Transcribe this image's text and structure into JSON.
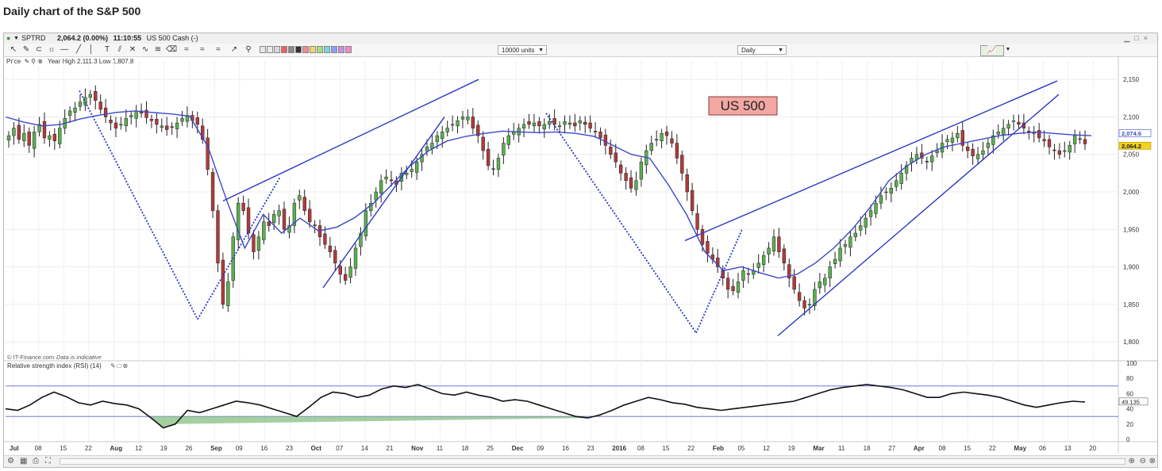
{
  "page": {
    "title": "Daily chart of the S&P 500"
  },
  "window": {
    "symbol_info": "SPTRD",
    "quote": "2,064.2 (0.00%)",
    "time": "11:10:55",
    "instrument": "US 500 Cash (-)"
  },
  "toolbar": {
    "units_select": "10000 units",
    "interval_select": "Daily"
  },
  "price_panel": {
    "label": "Price",
    "year_range": "Year High 2,111.3 Low 1,807.8",
    "chart_label": "US 500",
    "source": "© IT-Finance.com",
    "source_note": "Data is indicative"
  },
  "rsi_panel": {
    "label": "Relative strength index (RSI) (14)",
    "current": "49.135"
  },
  "chart_data": {
    "type": "candlestick",
    "price_axis": {
      "ticks": [
        1800,
        1850,
        1900,
        1950,
        2000,
        2050,
        2100,
        2150
      ],
      "tick_labels": [
        "1,800",
        "1,850",
        "1,900",
        "1,950",
        "2,000",
        "2,050",
        "2,100",
        "2,150"
      ],
      "range": [
        1780,
        2165
      ],
      "markers": [
        {
          "label": "2,074.6",
          "value": 2074.6,
          "color": "#3b4bc8"
        },
        {
          "label": "2,064.2",
          "value": 2064.2,
          "color": "#f1d21c"
        }
      ]
    },
    "rsi_axis": {
      "ticks": [
        0,
        20,
        40,
        60,
        80,
        100
      ],
      "tick_labels": [
        "0",
        "20",
        "40",
        "60",
        "80",
        "100"
      ],
      "lines": [
        30,
        70
      ],
      "current": 49.135
    },
    "x_axis": {
      "labels": [
        "Jul",
        "08",
        "15",
        "22",
        "Aug",
        "12",
        "19",
        "26",
        "Sep",
        "09",
        "16",
        "23",
        "Oct",
        "07",
        "14",
        "21",
        "Nov",
        "11",
        "18",
        "25",
        "Dec",
        "09",
        "16",
        "23",
        "2016",
        "08",
        "15",
        "22",
        "Feb",
        "05",
        "12",
        "19",
        "Mar",
        "11",
        "18",
        "27",
        "Apr",
        "08",
        "15",
        "22",
        "May",
        "06",
        "13",
        "20"
      ],
      "bold": [
        "Jul",
        "Aug",
        "Sep",
        "Oct",
        "Nov",
        "Dec",
        "2016",
        "Feb",
        "Mar",
        "Apr",
        "May"
      ]
    },
    "candles": [
      2075,
      2085,
      2070,
      2078,
      2062,
      2080,
      2090,
      2072,
      2075,
      2068,
      2085,
      2098,
      2108,
      2112,
      2120,
      2126,
      2130,
      2122,
      2110,
      2100,
      2092,
      2085,
      2090,
      2098,
      2102,
      2108,
      2105,
      2099,
      2095,
      2090,
      2088,
      2083,
      2086,
      2092,
      2098,
      2102,
      2095,
      2090,
      2070,
      2030,
      1975,
      1905,
      1850,
      1880,
      1940,
      1985,
      1975,
      1945,
      1920,
      1940,
      1960,
      1955,
      1970,
      1975,
      1950,
      1955,
      1985,
      1995,
      1975,
      1960,
      1955,
      1940,
      1930,
      1920,
      1905,
      1890,
      1882,
      1900,
      1925,
      1945,
      1975,
      1985,
      2000,
      2015,
      2020,
      2015,
      2010,
      2025,
      2025,
      2030,
      2040,
      2050,
      2060,
      2065,
      2075,
      2080,
      2085,
      2090,
      2095,
      2100,
      2100,
      2085,
      2075,
      2055,
      2035,
      2030,
      2045,
      2065,
      2075,
      2080,
      2085,
      2090,
      2090,
      2092,
      2088,
      2090,
      2094,
      2090,
      2088,
      2094,
      2092,
      2088,
      2095,
      2090,
      2085,
      2080,
      2072,
      2062,
      2050,
      2040,
      2025,
      2015,
      2005,
      2015,
      2040,
      2055,
      2065,
      2070,
      2078,
      2075,
      2065,
      2045,
      2025,
      2000,
      1975,
      1950,
      1930,
      1918,
      1910,
      1900,
      1885,
      1870,
      1868,
      1880,
      1895,
      1890,
      1895,
      1905,
      1915,
      1925,
      1940,
      1920,
      1905,
      1885,
      1870,
      1855,
      1845,
      1850,
      1870,
      1880,
      1885,
      1900,
      1910,
      1925,
      1930,
      1940,
      1945,
      1955,
      1965,
      1975,
      1985,
      1995,
      2000,
      2005,
      2015,
      2025,
      2035,
      2045,
      2050,
      2045,
      2040,
      2048,
      2055,
      2065,
      2070,
      2072,
      2078,
      2062,
      2055,
      2048,
      2050,
      2055,
      2065,
      2075,
      2080,
      2085,
      2090,
      2095,
      2090,
      2085,
      2080,
      2078,
      2072,
      2068,
      2060,
      2055,
      2050,
      2055,
      2062,
      2075,
      2070,
      2064
    ],
    "ma": [
      2100,
      2093,
      2088,
      2090,
      2097,
      2102,
      2106,
      2108,
      2106,
      2104,
      2101,
      2060,
      1990,
      1925,
      1970,
      1945,
      1965,
      1948,
      1953,
      1966,
      1985,
      2010,
      2035,
      2055,
      2068,
      2074,
      2078,
      2081,
      2080,
      2079,
      2080,
      2078,
      2074,
      2062,
      2050,
      2045,
      2010,
      1970,
      1920,
      1895,
      1900,
      1892,
      1885,
      1890,
      1905,
      1925,
      1950,
      1980,
      2015,
      2035,
      2050,
      2060,
      2065,
      2070,
      2075,
      2078,
      2080,
      2078,
      2076,
      2075
    ],
    "rsi": [
      40,
      38,
      45,
      55,
      62,
      56,
      48,
      45,
      50,
      47,
      45,
      40,
      28,
      15,
      20,
      38,
      35,
      40,
      45,
      50,
      48,
      45,
      40,
      35,
      30,
      42,
      55,
      62,
      60,
      55,
      58,
      66,
      70,
      68,
      72,
      66,
      60,
      58,
      62,
      58,
      55,
      50,
      52,
      50,
      45,
      40,
      35,
      30,
      28,
      32,
      38,
      45,
      50,
      55,
      52,
      48,
      46,
      42,
      40,
      38,
      40,
      42,
      44,
      46,
      48,
      50,
      55,
      60,
      65,
      68,
      70,
      72,
      70,
      68,
      65,
      60,
      55,
      55,
      60,
      62,
      60,
      58,
      55,
      50,
      45,
      42,
      45,
      48,
      50,
      49
    ]
  }
}
